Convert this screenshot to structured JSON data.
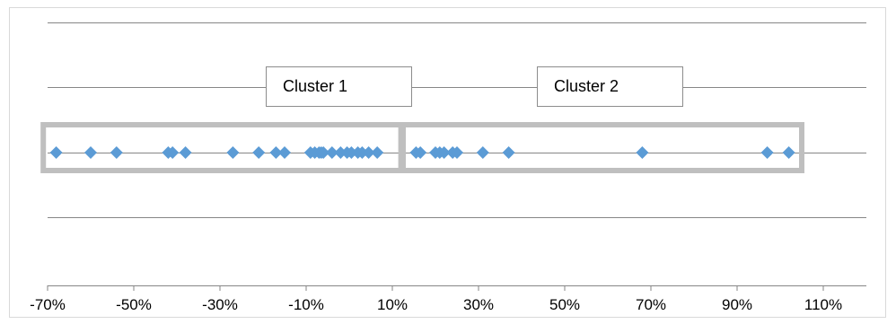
{
  "chart_data": {
    "type": "scatter",
    "title": "",
    "xlabel": "",
    "ylabel": "",
    "xlim": [
      -0.7,
      1.2
    ],
    "x_tick_values": [
      -0.7,
      -0.5,
      -0.3,
      -0.1,
      0.1,
      0.3,
      0.5,
      0.7,
      0.9,
      1.1
    ],
    "x_tick_labels": [
      "-70%",
      "-50%",
      "-30%",
      "-10%",
      "10%",
      "30%",
      "50%",
      "70%",
      "90%",
      "110%"
    ],
    "grid": true,
    "legend": "none",
    "marker_color": "#5b9bd5",
    "series": [
      {
        "name": "",
        "x": [
          -0.68,
          -0.6,
          -0.54,
          -0.42,
          -0.41,
          -0.38,
          -0.27,
          -0.21,
          -0.17,
          -0.15,
          -0.09,
          -0.08,
          -0.07,
          -0.065,
          -0.06,
          -0.04,
          -0.02,
          -0.005,
          0.005,
          0.02,
          0.03,
          0.045,
          0.065,
          0.155,
          0.165,
          0.2,
          0.21,
          0.22,
          0.24,
          0.25,
          0.31,
          0.37,
          0.68,
          0.97,
          1.02
        ],
        "y": [
          0,
          0,
          0,
          0,
          0,
          0,
          0,
          0,
          0,
          0,
          0,
          0,
          0,
          0,
          0,
          0,
          0,
          0,
          0,
          0,
          0,
          0,
          0,
          0,
          0,
          0,
          0,
          0,
          0,
          0,
          0,
          0,
          0,
          0,
          0
        ]
      }
    ],
    "annotations": [
      {
        "label": "Cluster 1",
        "x_range": [
          -0.71,
          0.12
        ]
      },
      {
        "label": "Cluster 2",
        "x_range": [
          0.125,
          1.05
        ]
      }
    ],
    "box_color": "#bfbfbf"
  }
}
